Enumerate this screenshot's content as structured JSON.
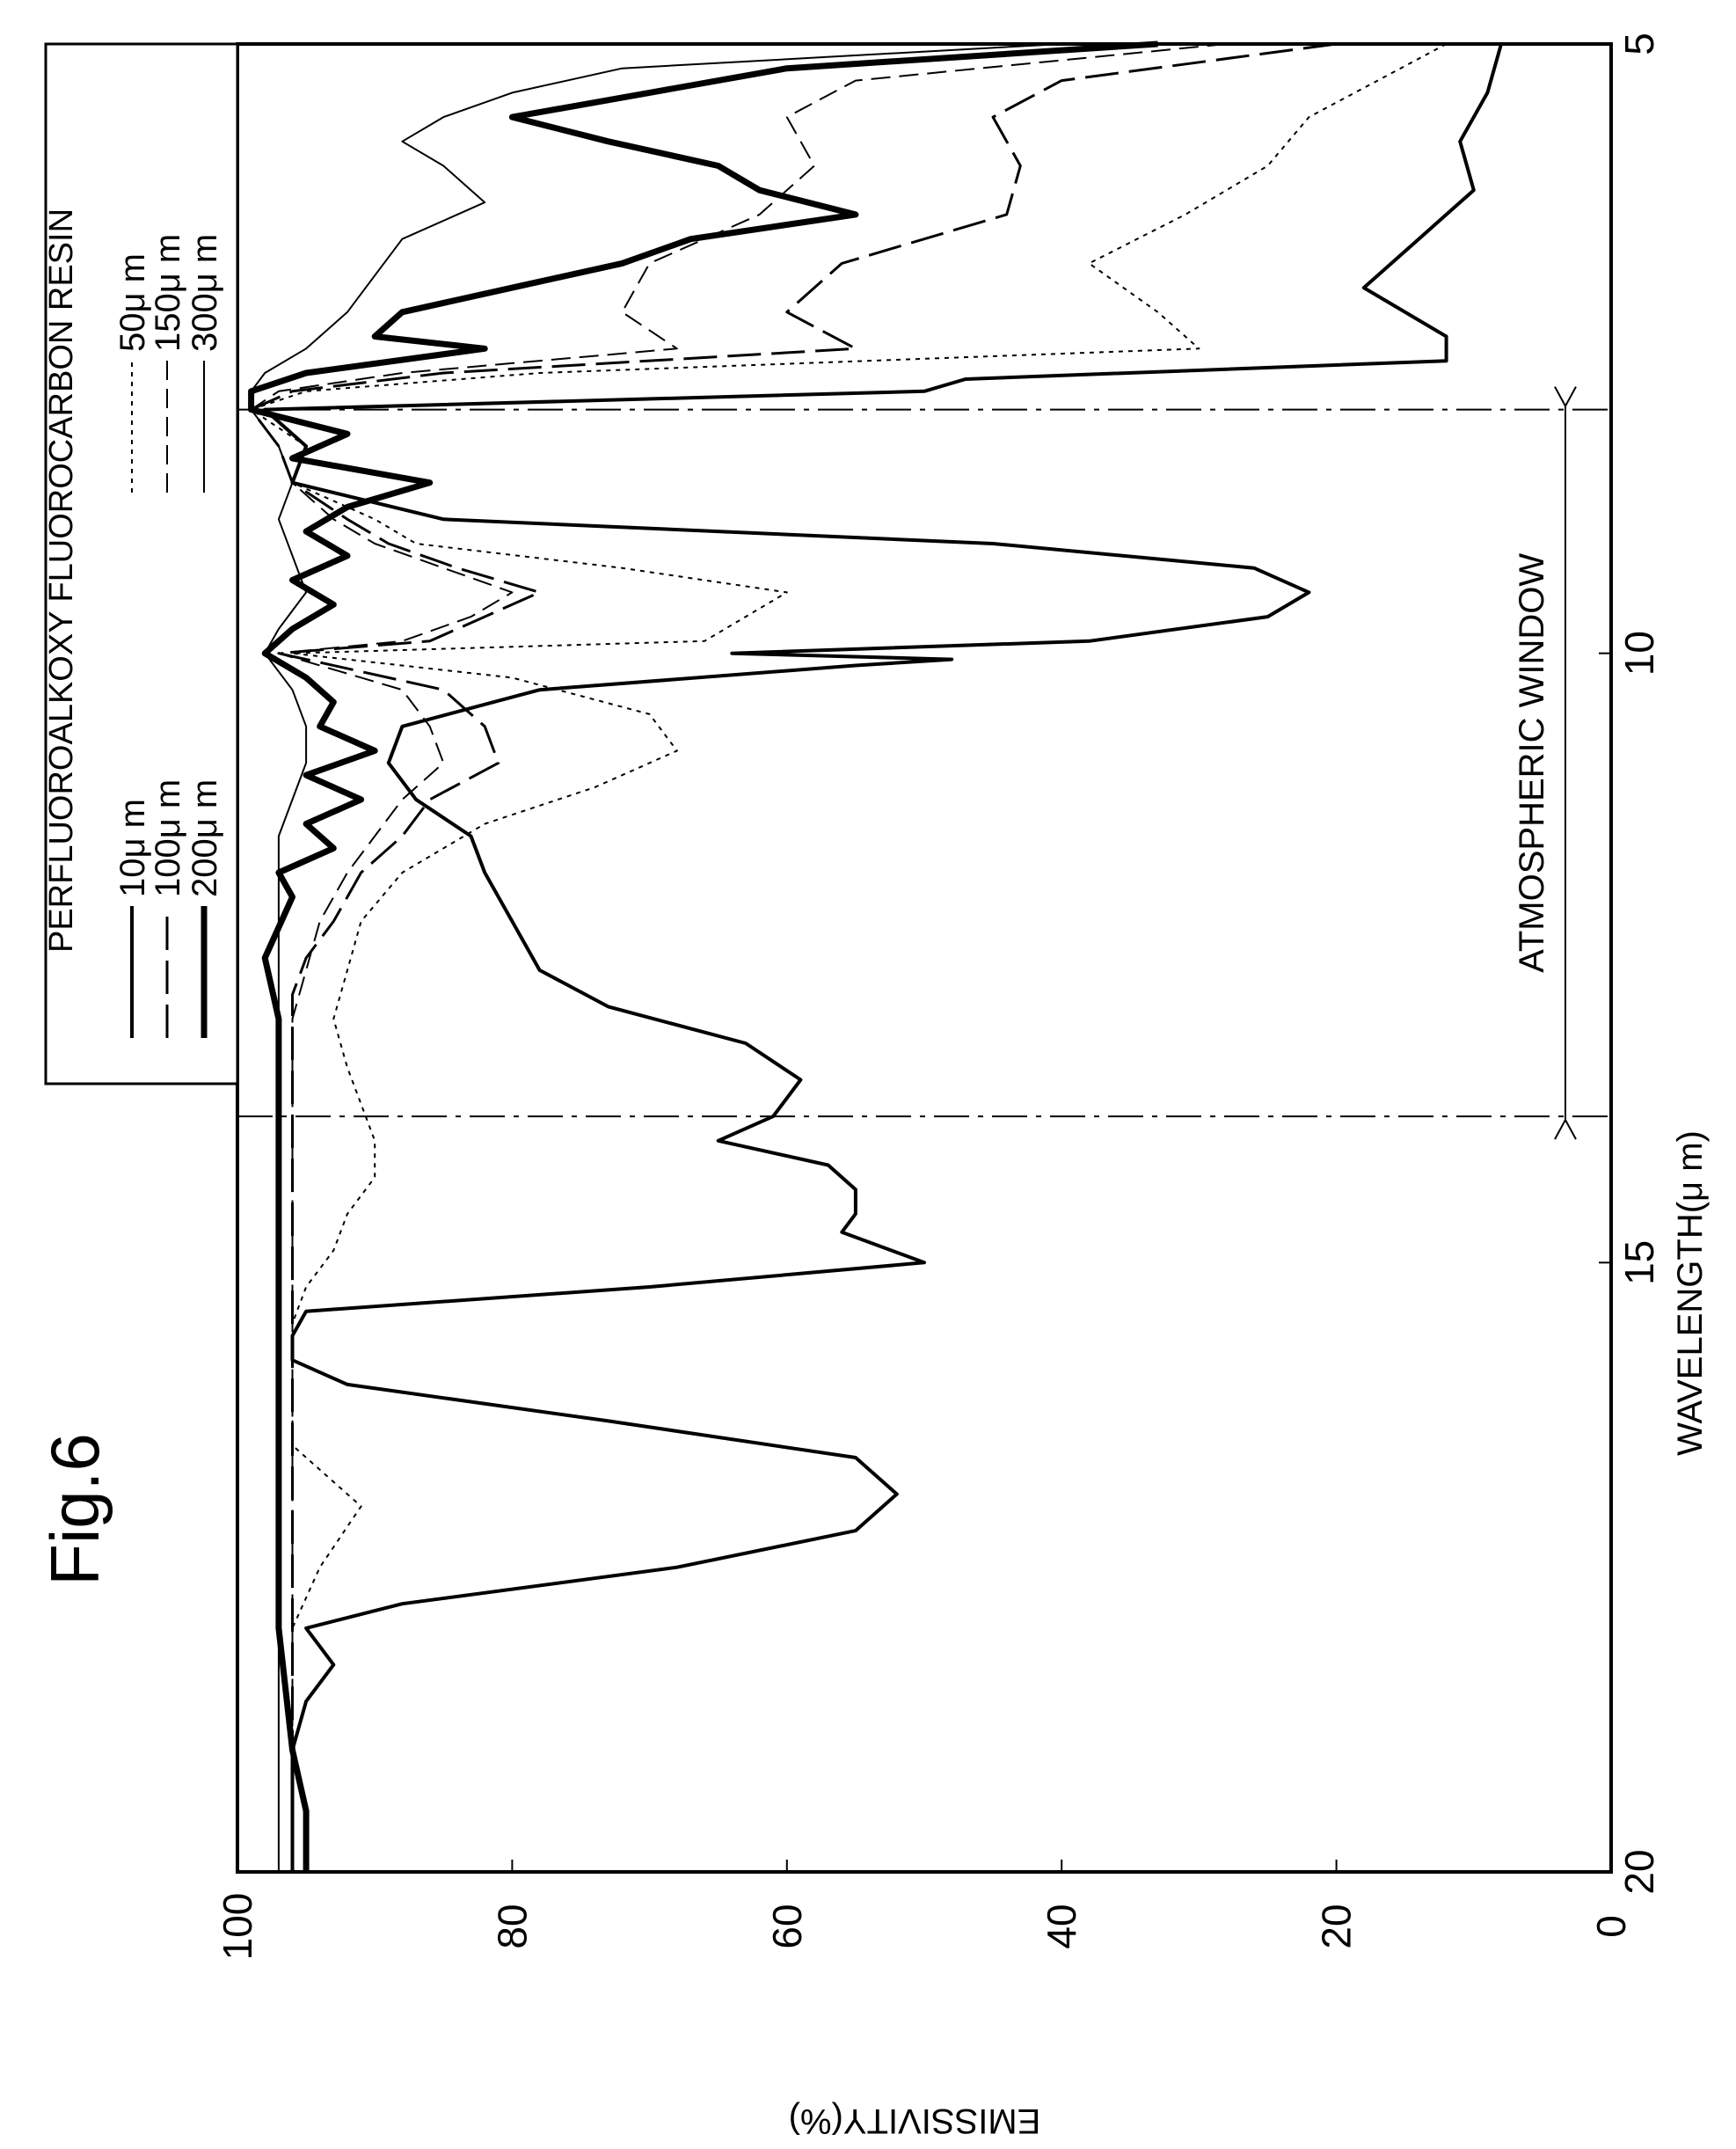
{
  "figure_label": "Fig.6",
  "chart_data": {
    "type": "line",
    "rotated": "figure printed rotated 90 degrees clockwise",
    "title": "",
    "xlabel": "WAVELENGTH(μ m)",
    "ylabel": "EMISSIVITY(%)",
    "xlim": [
      5,
      20
    ],
    "ylim": [
      0,
      100
    ],
    "xticks": [
      "5",
      "10",
      "15",
      "20"
    ],
    "yticks": [
      "0",
      "20",
      "40",
      "60",
      "80",
      "100"
    ],
    "legend": {
      "title": "PERFLUOROALKOXY FLUOROCARBON RESIN",
      "placement": "top-right (rotated frame)"
    },
    "annotation": {
      "text": "ATMOSPHERIC WINDOW",
      "x_start": 8,
      "x_end": 13.8
    },
    "series": [
      {
        "name": "10μ m",
        "style": "solid",
        "width": 4,
        "x": [
          5.0,
          5.4,
          5.8,
          6.2,
          6.6,
          7.0,
          7.4,
          7.6,
          7.75,
          7.85,
          8.0,
          8.3,
          8.6,
          8.9,
          9.1,
          9.3,
          9.5,
          9.7,
          9.9,
          10.0,
          10.05,
          10.1,
          10.3,
          10.6,
          10.9,
          11.2,
          11.5,
          11.8,
          12.2,
          12.6,
          12.9,
          13.2,
          13.5,
          13.8,
          14.0,
          14.2,
          14.4,
          14.6,
          14.75,
          15.0,
          15.2,
          15.4,
          15.6,
          15.8,
          16.0,
          16.3,
          16.6,
          16.9,
          17.2,
          17.5,
          17.8,
          18.0,
          18.3,
          18.6,
          19.0,
          19.5,
          20.0
        ],
        "y": [
          8,
          9,
          11,
          10,
          14,
          18,
          12,
          12,
          47,
          50,
          98,
          95,
          96,
          85,
          45,
          26,
          22,
          25,
          38,
          64,
          48,
          55,
          78,
          88,
          89,
          87,
          83,
          82,
          80,
          78,
          73,
          63,
          59,
          61,
          65,
          57,
          55,
          55,
          56,
          50,
          70,
          95,
          96,
          96,
          92,
          73,
          55,
          52,
          55,
          68,
          88,
          95,
          93,
          95,
          96,
          96,
          96
        ]
      },
      {
        "name": "50μ m",
        "style": "dotted",
        "width": 2,
        "x": [
          5.0,
          5.3,
          5.6,
          6.0,
          6.4,
          6.8,
          7.2,
          7.5,
          7.7,
          7.85,
          8.0,
          8.3,
          8.6,
          8.9,
          9.1,
          9.3,
          9.5,
          9.7,
          9.9,
          10.0,
          10.2,
          10.5,
          10.8,
          11.1,
          11.4,
          11.8,
          12.2,
          12.6,
          13.0,
          13.4,
          13.7,
          14.0,
          14.3,
          14.6,
          14.9,
          15.2,
          15.5,
          16.0,
          16.5,
          17.0,
          17.5,
          18.0,
          18.5,
          19.0,
          19.5,
          20.0
        ],
        "y": [
          12,
          17,
          22,
          25,
          31,
          38,
          33,
          30,
          78,
          95,
          99,
          95,
          96,
          90,
          87,
          72,
          60,
          63,
          66,
          96,
          80,
          70,
          68,
          74,
          82,
          88,
          91,
          92,
          93,
          92,
          91,
          90,
          90,
          92,
          93,
          95,
          96,
          96,
          96,
          91,
          94,
          96,
          96,
          96,
          96,
          96
        ]
      },
      {
        "name": "100μ m",
        "style": "long-dash",
        "width": 3,
        "x": [
          5.0,
          5.3,
          5.6,
          6.0,
          6.4,
          6.8,
          7.2,
          7.5,
          7.7,
          7.85,
          8.0,
          8.3,
          8.6,
          8.9,
          9.1,
          9.3,
          9.5,
          9.7,
          9.9,
          10.0,
          10.3,
          10.6,
          10.9,
          11.2,
          11.5,
          11.8,
          12.2,
          12.5,
          12.8,
          13.2,
          13.6,
          14.0,
          15.0,
          16.0,
          17.0,
          18.0,
          19.0,
          20.0
        ],
        "y": [
          20,
          40,
          45,
          43,
          44,
          56,
          60,
          55,
          85,
          96,
          99,
          97,
          96,
          92,
          89,
          84,
          78,
          82,
          86,
          97,
          85,
          82,
          81,
          86,
          88,
          91,
          93,
          95,
          96,
          96,
          96,
          96,
          96,
          96,
          96,
          96,
          96,
          96
        ]
      },
      {
        "name": "150μ m",
        "style": "dashed",
        "width": 2,
        "x": [
          5.0,
          5.3,
          5.6,
          6.0,
          6.4,
          6.8,
          7.2,
          7.5,
          7.7,
          7.85,
          8.0,
          8.3,
          8.6,
          8.9,
          9.1,
          9.3,
          9.5,
          9.7,
          9.9,
          10.0,
          10.3,
          10.6,
          10.9,
          11.2,
          11.5,
          11.8,
          12.2,
          12.6,
          13.0,
          14.0,
          15.0,
          16.0,
          17.0,
          18.0,
          19.0,
          20.0
        ],
        "y": [
          28,
          55,
          60,
          58,
          62,
          70,
          72,
          68,
          88,
          97,
          99,
          97,
          96,
          93,
          90,
          85,
          80,
          83,
          88,
          97,
          88,
          86,
          85,
          88,
          90,
          92,
          94,
          95,
          96,
          96,
          96,
          96,
          96,
          96,
          96,
          96
        ]
      },
      {
        "name": "200μ m",
        "style": "solid",
        "width": 7,
        "x": [
          5.0,
          5.2,
          5.4,
          5.6,
          5.8,
          6.0,
          6.2,
          6.4,
          6.6,
          6.8,
          7.0,
          7.2,
          7.4,
          7.5,
          7.7,
          7.85,
          8.0,
          8.2,
          8.4,
          8.6,
          8.8,
          9.0,
          9.2,
          9.4,
          9.6,
          9.8,
          10.0,
          10.2,
          10.4,
          10.6,
          10.8,
          11.0,
          11.2,
          11.4,
          11.6,
          11.8,
          12.0,
          12.5,
          13.0,
          14.0,
          15.0,
          16.0,
          17.0,
          18.0,
          19.0,
          19.5,
          20.0
        ],
        "y": [
          33,
          60,
          70,
          80,
          73,
          65,
          62,
          55,
          67,
          72,
          80,
          88,
          90,
          82,
          95,
          99,
          99,
          92,
          96,
          86,
          92,
          95,
          92,
          96,
          93,
          96,
          98,
          95,
          93,
          94,
          90,
          95,
          91,
          95,
          93,
          97,
          96,
          98,
          97,
          97,
          97,
          97,
          97,
          97,
          96,
          95,
          95
        ]
      },
      {
        "name": "300μ m",
        "style": "solid",
        "width": 2,
        "x": [
          5.0,
          5.2,
          5.4,
          5.6,
          5.8,
          6.0,
          6.3,
          6.6,
          6.9,
          7.2,
          7.5,
          7.7,
          7.85,
          8.0,
          8.3,
          8.6,
          8.9,
          9.2,
          9.5,
          9.8,
          10.0,
          10.3,
          10.6,
          10.9,
          11.2,
          11.5,
          12.0,
          13.0,
          14.0,
          15.0,
          16.0,
          17.0,
          18.0,
          19.0,
          20.0
        ],
        "y": [
          40,
          72,
          80,
          85,
          88,
          85,
          82,
          88,
          90,
          92,
          95,
          98,
          99,
          99,
          97,
          96,
          97,
          96,
          95,
          97,
          98,
          96,
          95,
          95,
          96,
          97,
          97,
          97,
          97,
          97,
          97,
          97,
          97,
          97,
          97
        ]
      }
    ]
  }
}
